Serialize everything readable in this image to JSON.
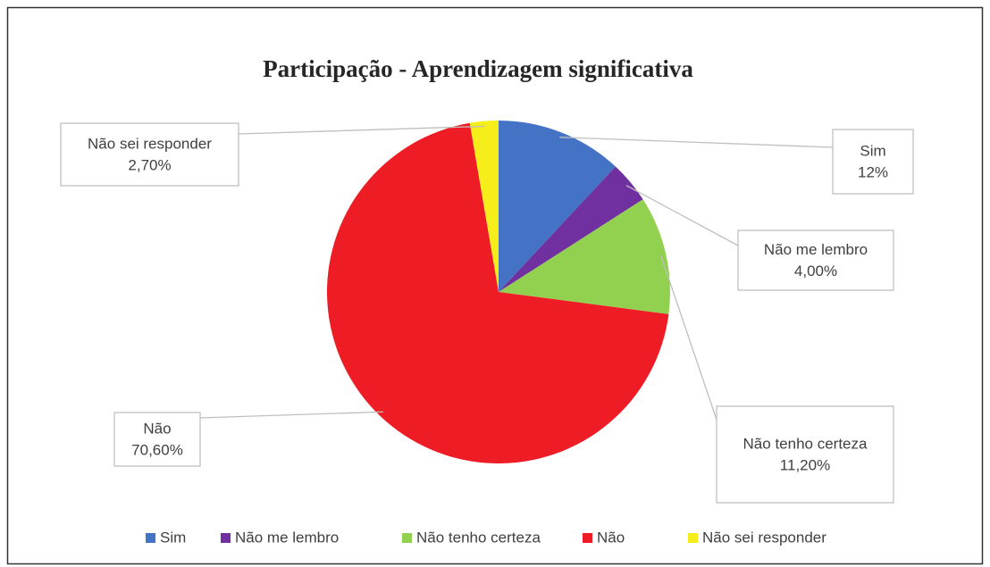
{
  "chart_data": {
    "type": "pie",
    "title": "Participação - Aprendizagem significativa",
    "categories": [
      "Sim",
      "Não me lembro",
      "Não tenho certeza",
      "Não",
      "Não sei responder"
    ],
    "values": [
      12,
      4.0,
      11.2,
      70.6,
      2.7
    ],
    "value_labels": [
      "12%",
      "4,00%",
      "11,20%",
      "70,60%",
      "2,70%"
    ],
    "colors": [
      "#4472c4",
      "#7030a0",
      "#92d050",
      "#ee1c24",
      "#f6ee1a"
    ],
    "legend": "bottom"
  }
}
